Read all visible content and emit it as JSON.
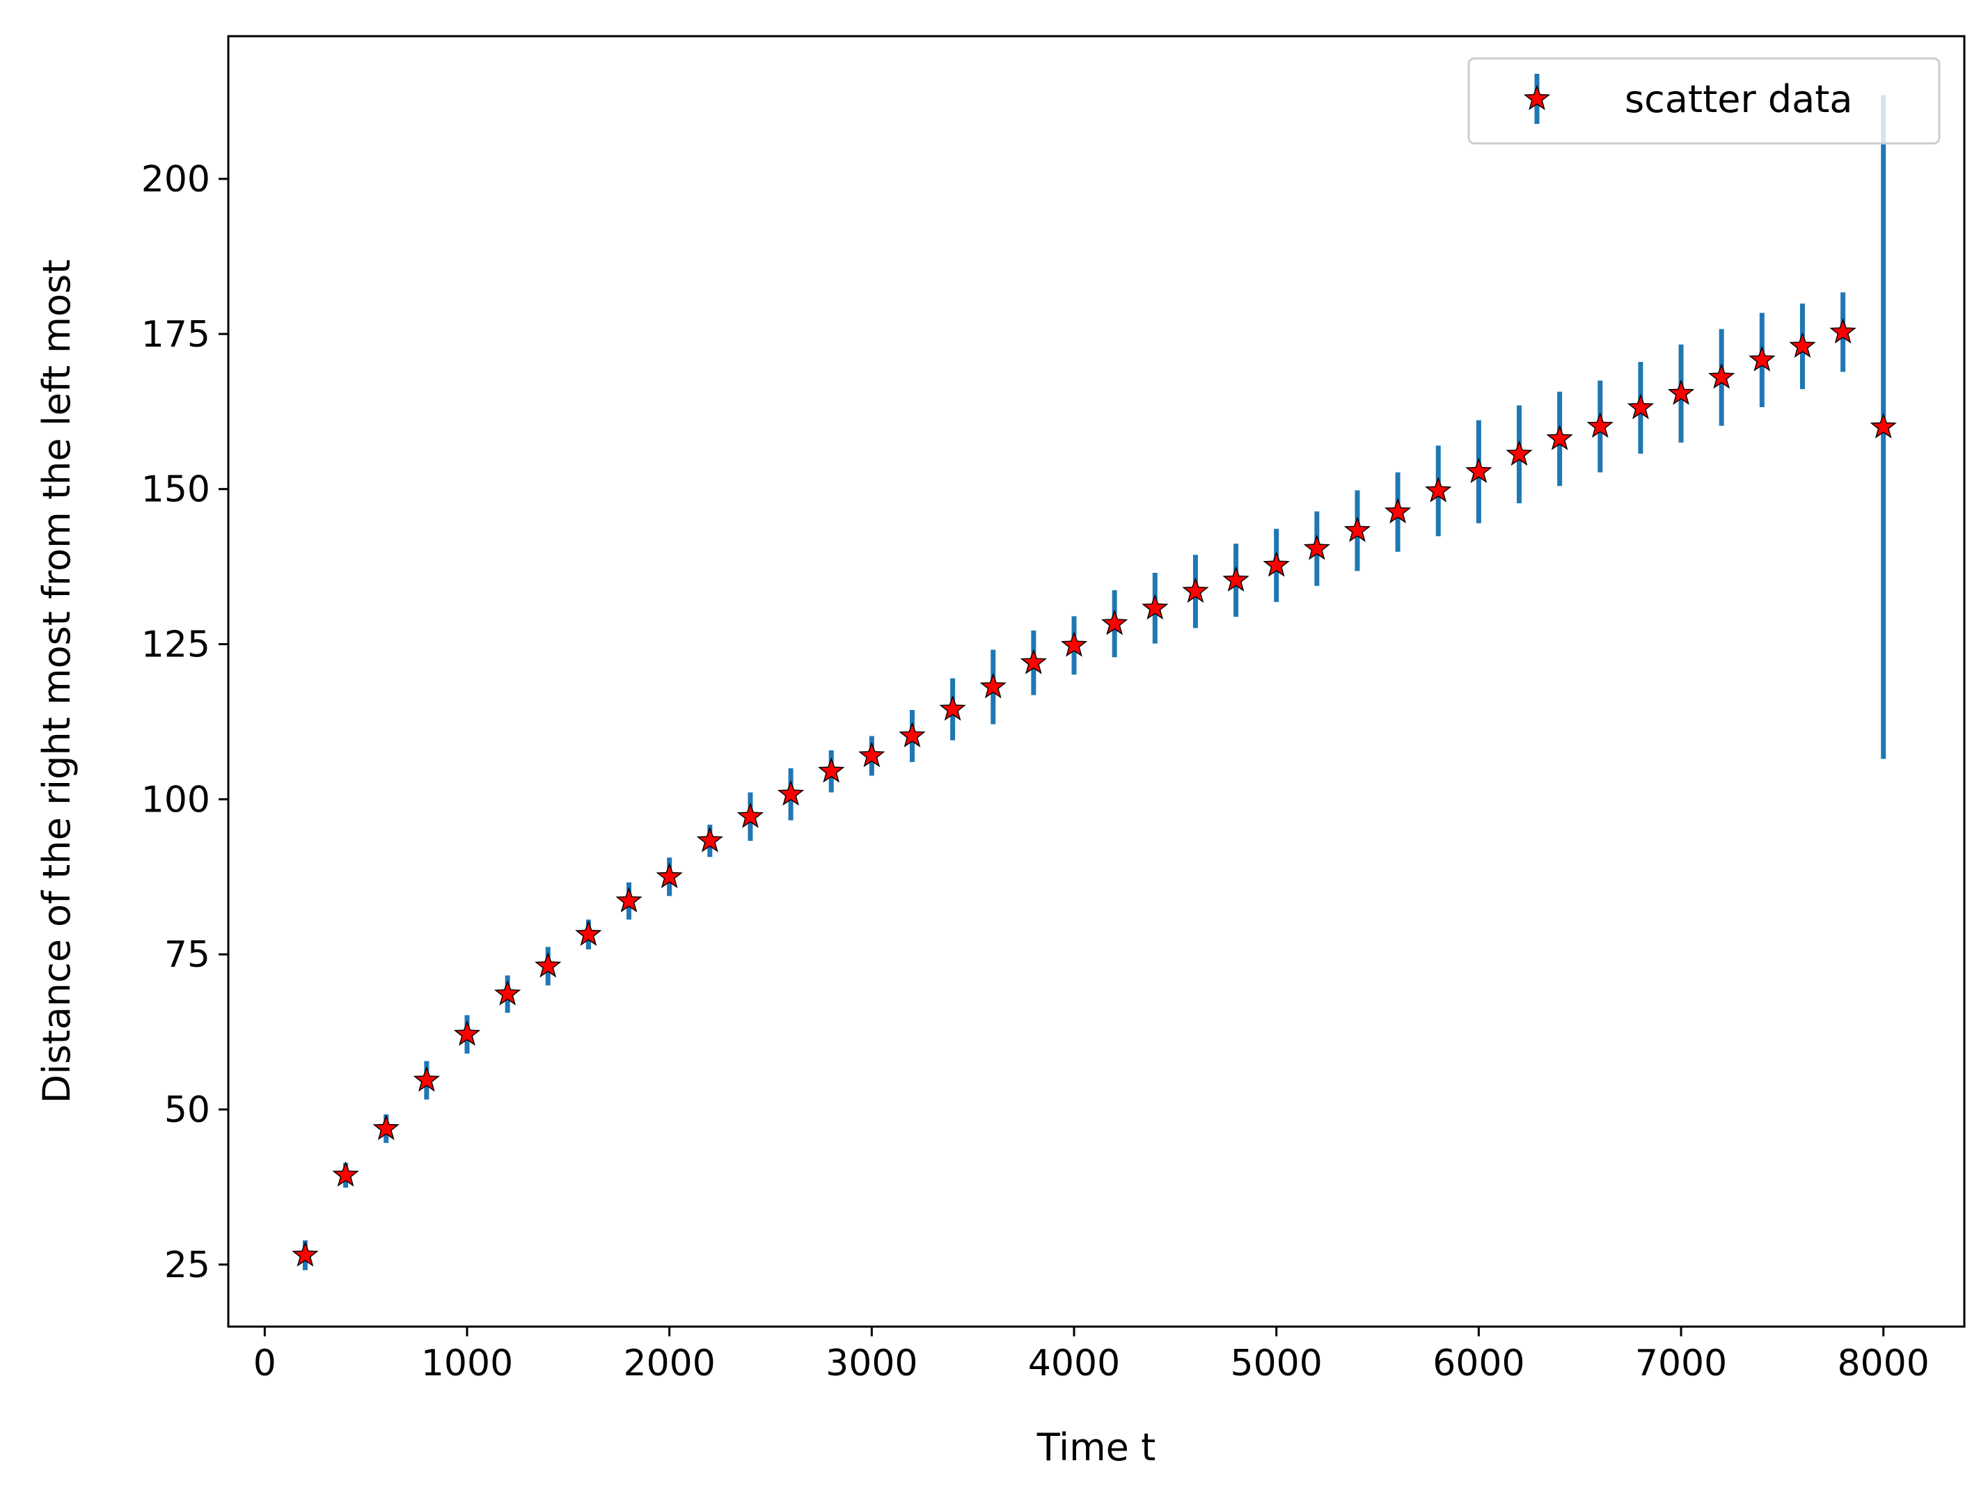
{
  "chart_data": {
    "type": "scatter",
    "title": "",
    "xlabel": "Time t",
    "ylabel": "Distance of the right most from the left most",
    "xlim": [
      -180,
      8400
    ],
    "ylim": [
      15,
      223
    ],
    "xticks": [
      0,
      1000,
      2000,
      3000,
      4000,
      5000,
      6000,
      7000,
      8000
    ],
    "xtick_labels": [
      "0",
      "1000",
      "2000",
      "3000",
      "4000",
      "5000",
      "6000",
      "7000",
      "8000"
    ],
    "yticks": [
      25,
      50,
      75,
      100,
      125,
      150,
      175,
      200
    ],
    "ytick_labels": [
      "25",
      "50",
      "75",
      "100",
      "125",
      "150",
      "175",
      "200"
    ],
    "grid": false,
    "legend": {
      "position": "top-right",
      "entries": [
        "scatter data"
      ]
    },
    "series": [
      {
        "name": "scatter data",
        "marker": "star",
        "marker_color": "#ff0000",
        "marker_edge_color": "#000000",
        "errorbar_color": "#1f77b4",
        "x": [
          200,
          400,
          600,
          800,
          1000,
          1200,
          1400,
          1600,
          1800,
          2000,
          2200,
          2400,
          2600,
          2800,
          3000,
          3200,
          3400,
          3600,
          3800,
          4000,
          4200,
          4400,
          4600,
          4800,
          5000,
          5200,
          5400,
          5600,
          5800,
          6000,
          6200,
          6400,
          6600,
          6800,
          7000,
          7200,
          7400,
          7600,
          7800,
          8000
        ],
        "y": [
          26.5,
          39.4,
          46.9,
          54.7,
          62.1,
          68.6,
          73.1,
          78.2,
          83.6,
          87.5,
          93.3,
          97.2,
          100.8,
          104.5,
          107.0,
          110.2,
          114.5,
          118.1,
          122.0,
          124.8,
          128.3,
          130.8,
          133.5,
          135.3,
          137.7,
          140.4,
          143.3,
          146.3,
          149.7,
          152.8,
          155.6,
          158.1,
          160.1,
          163.1,
          165.4,
          168.0,
          170.8,
          173.0,
          175.3,
          160.0
        ],
        "yerr": [
          2.4,
          2.0,
          2.3,
          3.1,
          3.1,
          3.0,
          3.1,
          2.4,
          3.0,
          3.1,
          2.6,
          3.9,
          4.2,
          3.4,
          3.2,
          4.2,
          5.0,
          6.0,
          5.2,
          4.7,
          5.4,
          5.7,
          5.9,
          5.9,
          5.9,
          6.0,
          6.5,
          6.4,
          7.3,
          8.3,
          7.9,
          7.6,
          7.4,
          7.4,
          7.9,
          7.8,
          7.6,
          6.9,
          6.4,
          53.5
        ]
      }
    ]
  }
}
